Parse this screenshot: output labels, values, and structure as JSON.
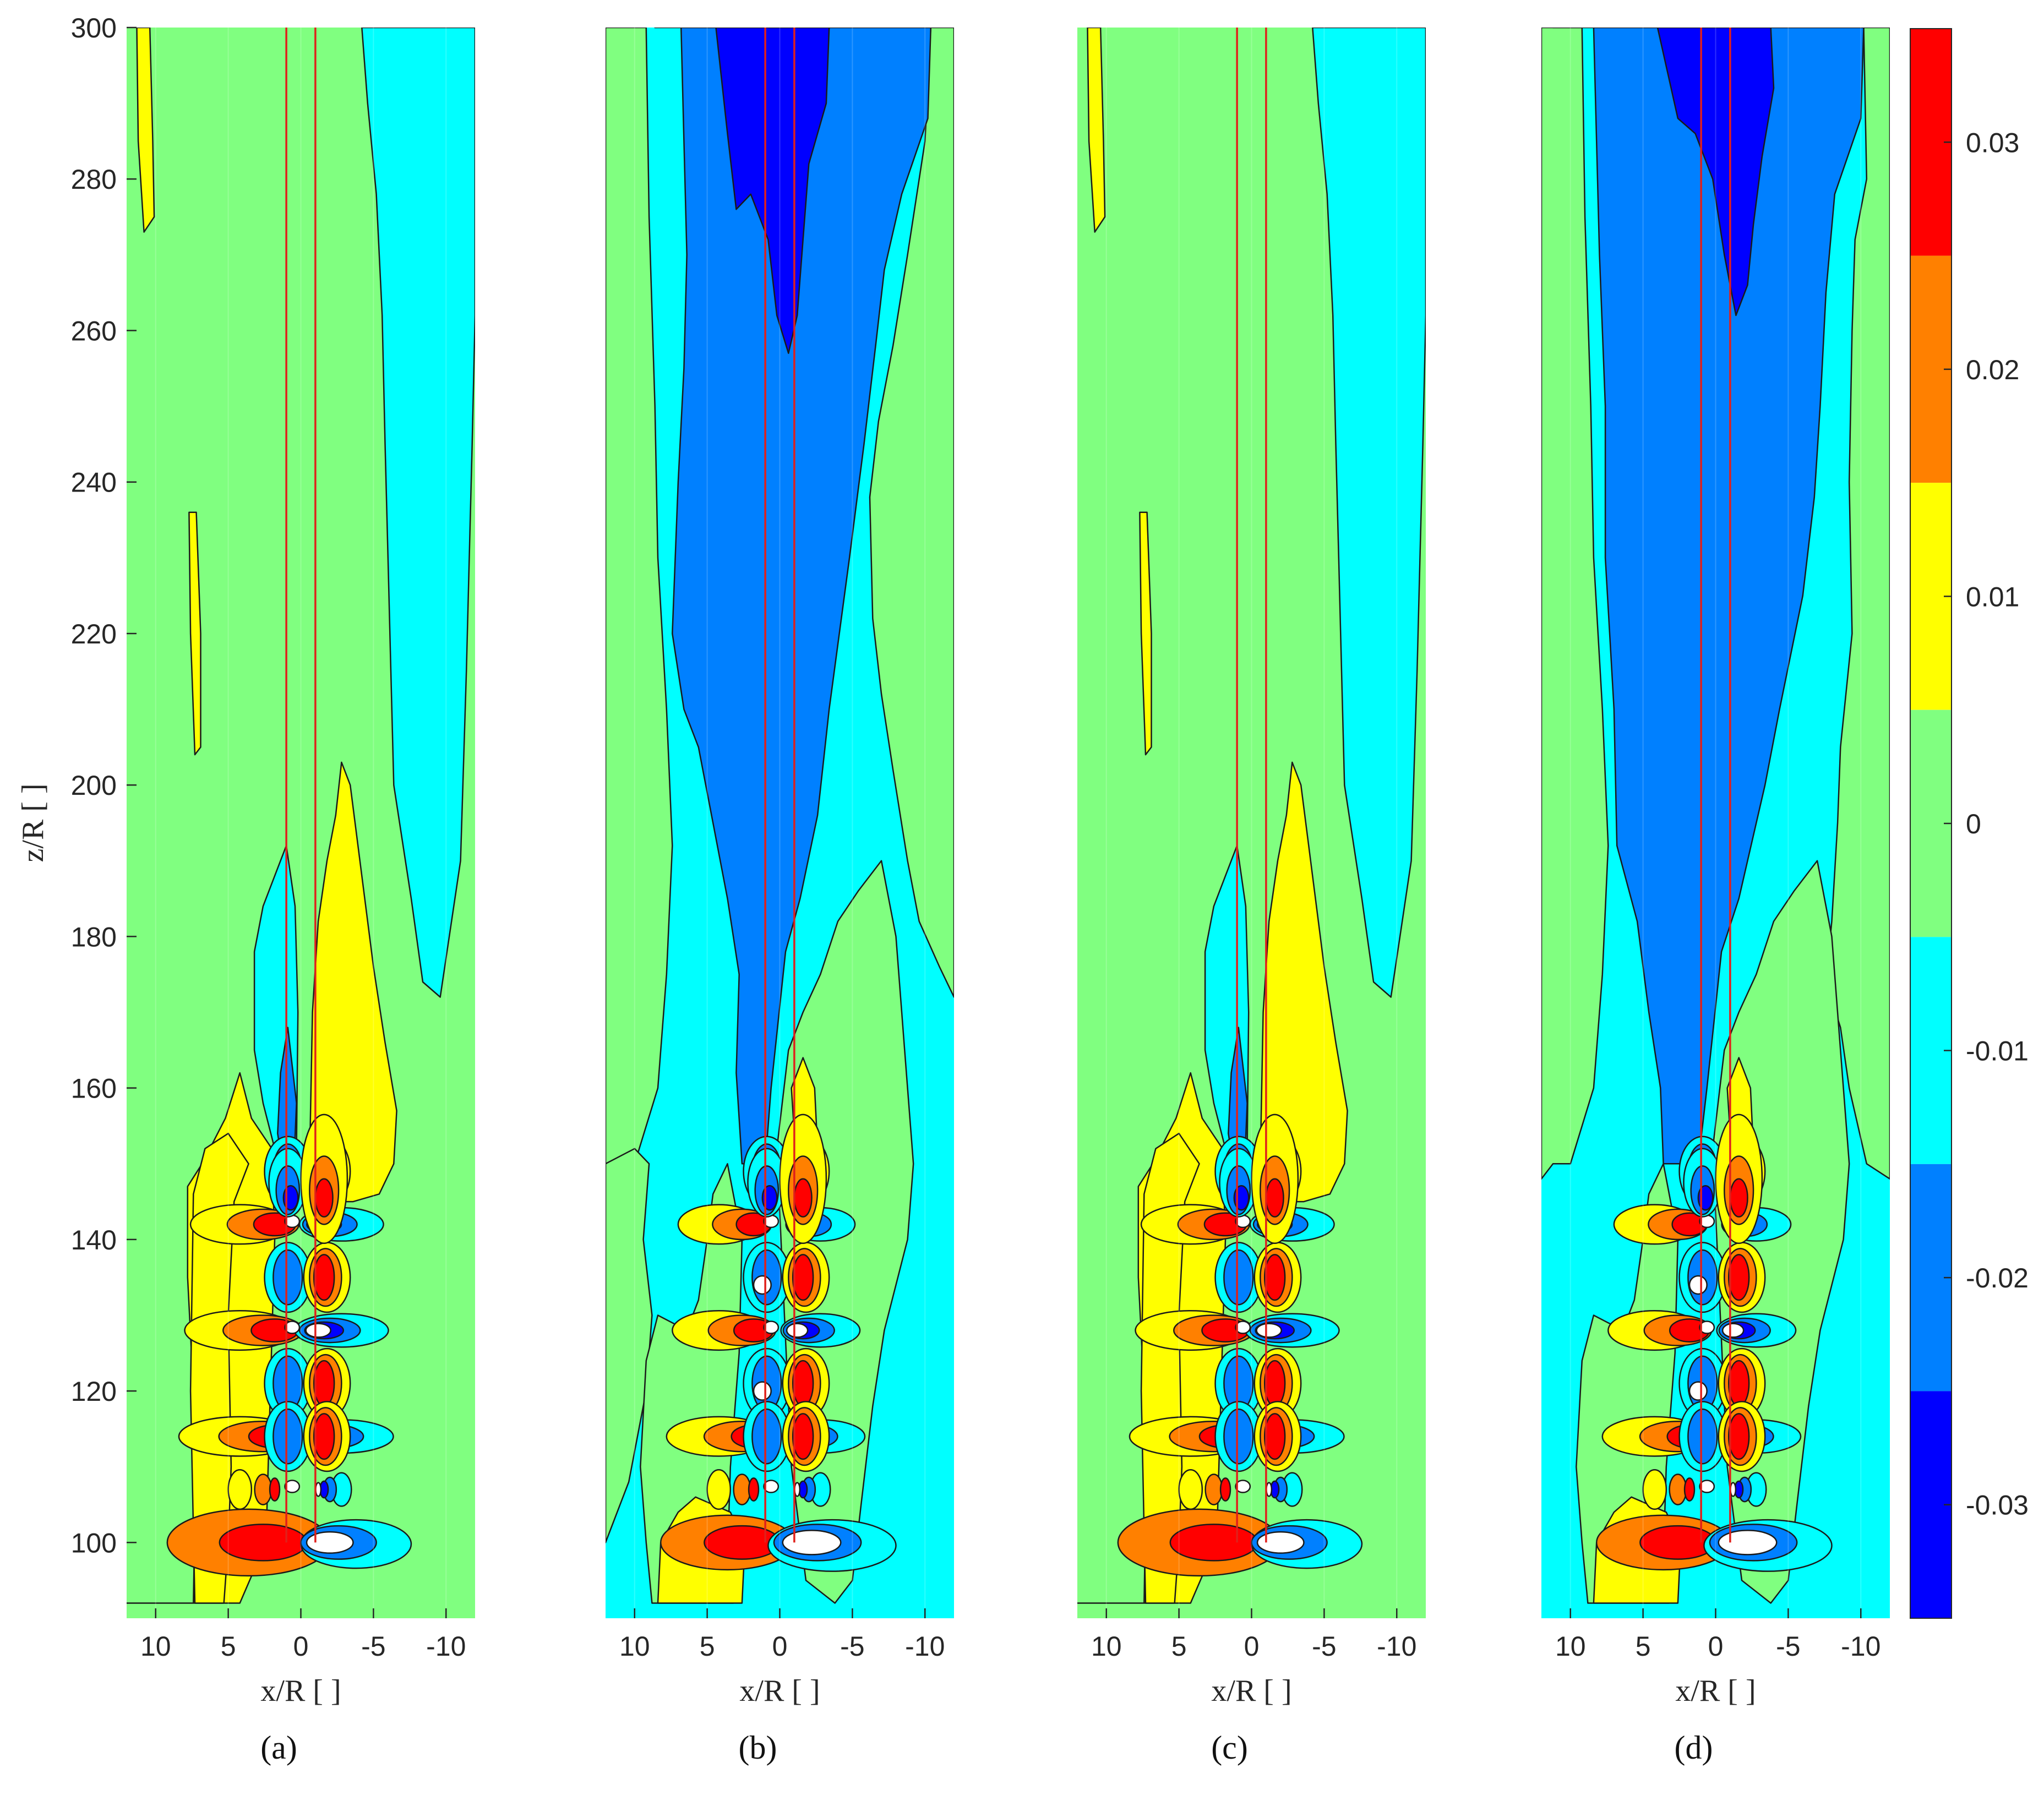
{
  "chart_data": {
    "type": "heatmap",
    "description_type": "filled contour plots",
    "panels": [
      {
        "label": "(a)",
        "letter": "a",
        "xlabel": "x/R [ ]",
        "ylabel": "z/R [ ]"
      },
      {
        "label": "(b)",
        "letter": "b",
        "xlabel": "x/R [ ]",
        "ylabel": ""
      },
      {
        "label": "(c)",
        "letter": "c",
        "xlabel": "x/R [ ]",
        "ylabel": ""
      },
      {
        "label": "(d)",
        "letter": "d",
        "xlabel": "x/R [ ]",
        "ylabel": ""
      }
    ],
    "x_axis": {
      "reversed": true,
      "range": [
        12,
        -12
      ],
      "ticks": [
        10,
        5,
        0,
        -5,
        -10
      ],
      "tick_labels": [
        "10",
        "5",
        "0",
        "-5",
        "-10"
      ]
    },
    "y_axis": {
      "range": [
        90,
        300
      ],
      "ticks": [
        100,
        120,
        140,
        160,
        180,
        200,
        220,
        240,
        260,
        280,
        300
      ],
      "tick_labels": [
        "100",
        "120",
        "140",
        "160",
        "180",
        "200",
        "220",
        "240",
        "260",
        "280",
        "300"
      ]
    },
    "turbine_lines_x": [
      1.0,
      -1.0
    ],
    "turbine_heights_z": [
      100,
      114,
      128,
      142
    ],
    "colorbar": {
      "range": [
        -0.035,
        0.035
      ],
      "ticks": [
        0.03,
        0.02,
        0.01,
        0,
        -0.01,
        -0.02,
        -0.03
      ],
      "tick_labels": [
        "0.03",
        "0.02",
        "0.01",
        "0",
        "-0.01",
        "-0.02",
        "-0.03"
      ],
      "levels": [
        {
          "from": 0.025,
          "to": 0.035,
          "color": "#ff0000"
        },
        {
          "from": 0.015,
          "to": 0.025,
          "color": "#ff8000"
        },
        {
          "from": 0.005,
          "to": 0.015,
          "color": "#ffff00"
        },
        {
          "from": -0.005,
          "to": 0.005,
          "color": "#80ff80"
        },
        {
          "from": -0.015,
          "to": -0.005,
          "color": "#00ffff"
        },
        {
          "from": -0.025,
          "to": -0.015,
          "color": "#0080ff"
        },
        {
          "from": -0.035,
          "to": -0.025,
          "color": "#0000ff"
        }
      ]
    }
  }
}
